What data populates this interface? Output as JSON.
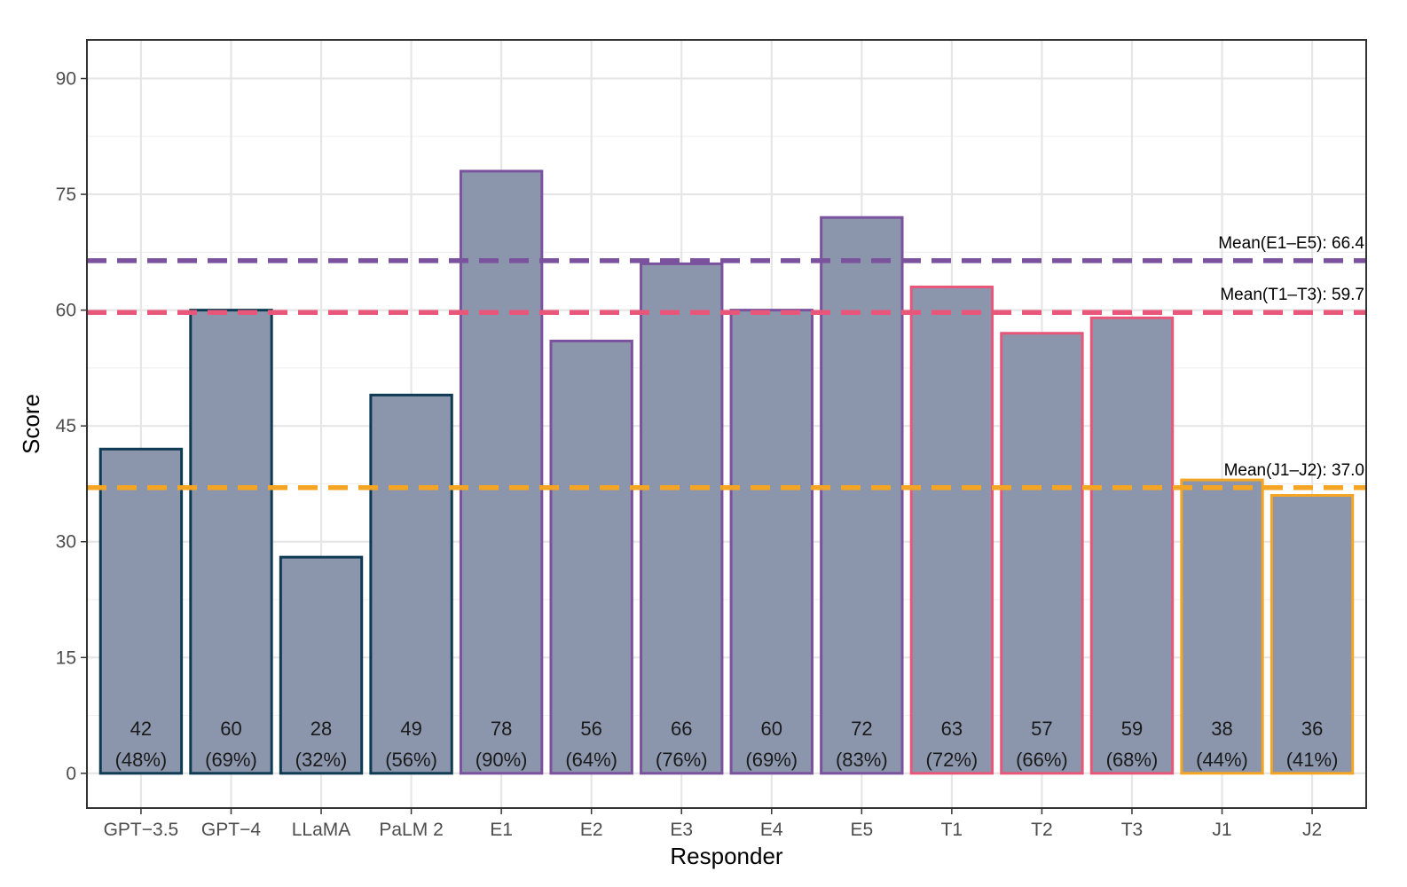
{
  "chart_data": {
    "type": "bar",
    "xlabel": "Responder",
    "ylabel": "Score",
    "ylim": [
      -4.5,
      95
    ],
    "yticks": [
      0,
      15,
      30,
      45,
      60,
      75,
      90
    ],
    "grid": true,
    "categories": [
      "GPT−3.5",
      "GPT−4",
      "LLaMA",
      "PaLM 2",
      "E1",
      "E2",
      "E3",
      "E4",
      "E5",
      "T1",
      "T2",
      "T3",
      "J1",
      "J2"
    ],
    "values": [
      42,
      60,
      28,
      49,
      78,
      56,
      66,
      60,
      72,
      63,
      57,
      59,
      38,
      36
    ],
    "percent_labels": [
      "(48%)",
      "(69%)",
      "(32%)",
      "(56%)",
      "(90%)",
      "(64%)",
      "(76%)",
      "(69%)",
      "(83%)",
      "(72%)",
      "(66%)",
      "(68%)",
      "(44%)",
      "(41%)"
    ],
    "groups": [
      "LLM",
      "LLM",
      "LLM",
      "LLM",
      "E",
      "E",
      "E",
      "E",
      "E",
      "T",
      "T",
      "T",
      "J",
      "J"
    ],
    "bar_fill": "#8b96ad",
    "group_colors": {
      "LLM": "#0e3a53",
      "E": "#7b529d",
      "T": "#e8577a",
      "J": "#f5a524"
    },
    "mean_lines": [
      {
        "group": "E",
        "value": 66.4,
        "label": "Mean(E1–E5): 66.4",
        "color": "#7b529d"
      },
      {
        "group": "T",
        "value": 59.7,
        "label": "Mean(T1–T3): 59.7",
        "color": "#e8577a"
      },
      {
        "group": "J",
        "value": 37.0,
        "label": "Mean(J1–J2): 37.0",
        "color": "#f5a524"
      }
    ]
  }
}
